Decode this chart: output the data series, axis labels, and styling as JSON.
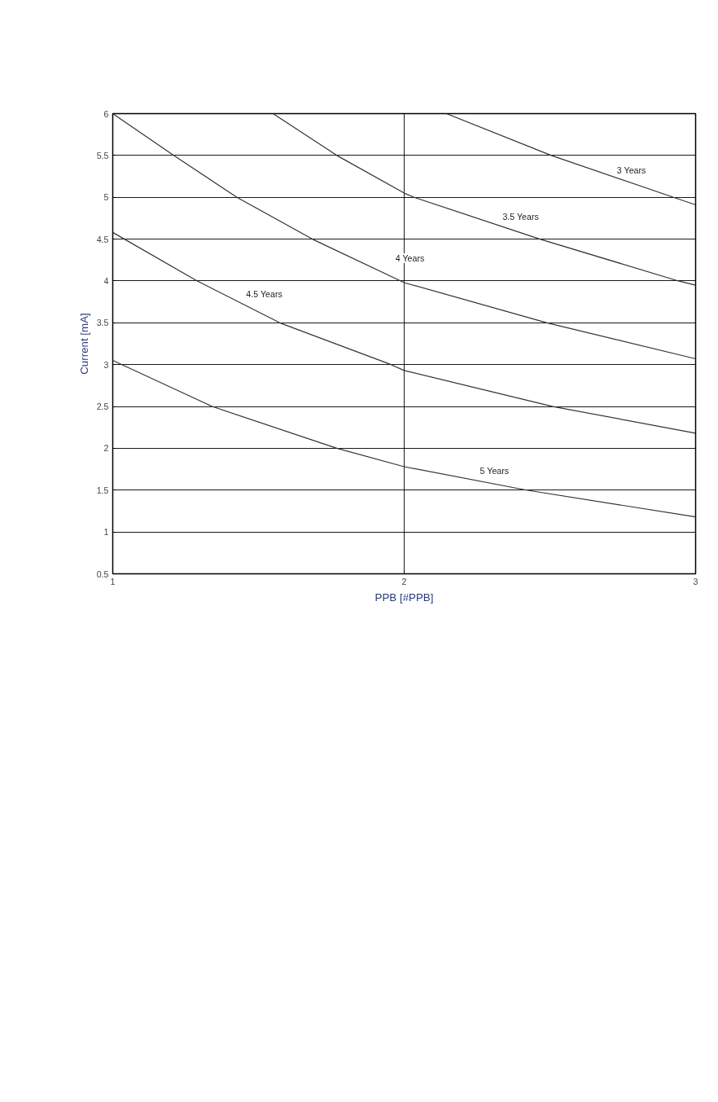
{
  "chart_data": {
    "type": "line",
    "xlabel": "PPB [#PPB]",
    "ylabel": "Current [mA]",
    "xlim": [
      1,
      3
    ],
    "ylim": [
      0.5,
      6
    ],
    "xticks": [
      1,
      2,
      3
    ],
    "yticks": [
      0.5,
      1,
      1.5,
      2,
      2.5,
      3,
      3.5,
      4,
      4.5,
      5,
      5.5,
      6
    ],
    "grid": true,
    "legend": false,
    "line_style": "solid",
    "series": [
      {
        "name": "3 Years",
        "color": "#333333",
        "x": [
          2.145,
          2.505,
          2.924,
          3
        ],
        "values": [
          6,
          5.5,
          5.0,
          4.91
        ]
      },
      {
        "name": "3.5 Years",
        "color": "#333333",
        "x": [
          1.55,
          1.769,
          2,
          2.034,
          2.466,
          2.941,
          3
        ],
        "values": [
          6,
          5.5,
          5.05,
          5.0,
          4.5,
          4.0,
          3.95
        ]
      },
      {
        "name": "4 Years",
        "color": "#333333",
        "x": [
          1,
          1.209,
          1.426,
          1.685,
          2,
          2.49,
          3
        ],
        "values": [
          6,
          5.5,
          5.0,
          4.5,
          3.98,
          3.5,
          3.07
        ]
      },
      {
        "name": "4.5 Years",
        "color": "#333333",
        "x": [
          1,
          1.29,
          1.573,
          1.955,
          2,
          2.51,
          3
        ],
        "values": [
          4.58,
          4.0,
          3.5,
          3.0,
          2.93,
          2.5,
          2.18
        ]
      },
      {
        "name": "5 Years",
        "color": "#333333",
        "x": [
          1,
          1.341,
          1.769,
          2,
          2.42,
          3
        ],
        "values": [
          3.05,
          2.5,
          2.0,
          1.78,
          1.5,
          1.18
        ]
      }
    ]
  }
}
